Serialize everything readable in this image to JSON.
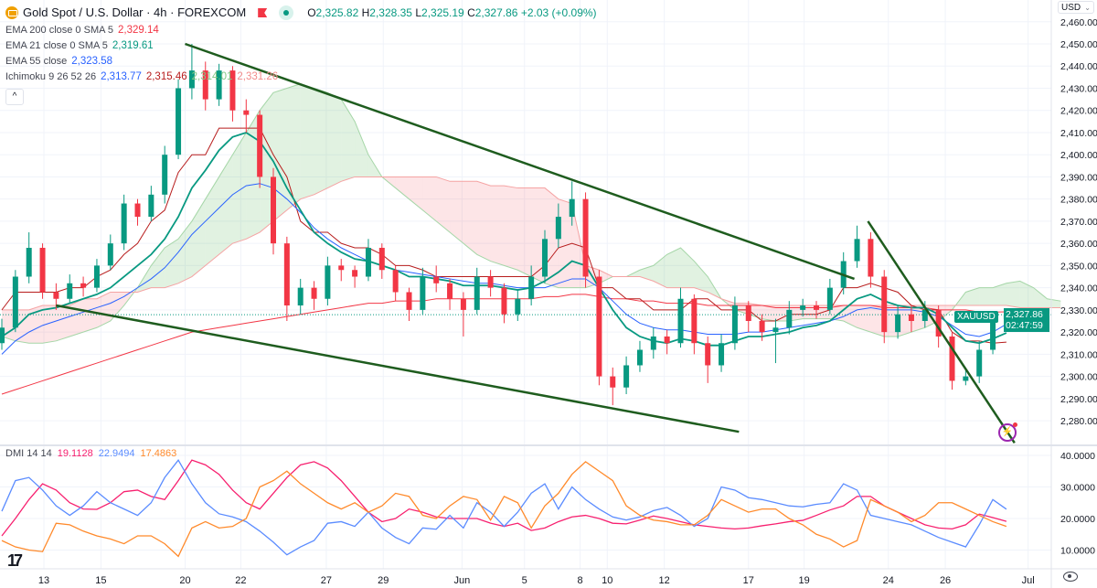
{
  "header": {
    "symbol_title": "Gold Spot / U.S. Dollar · 4h · FOREXCOM",
    "ohlc": {
      "o_label": "O",
      "o": "2,325.82",
      "h_label": "H",
      "h": "2,328.35",
      "l_label": "L",
      "l": "2,325.19",
      "c_label": "C",
      "c": "2,327.86",
      "change": "+2.03 (+0.09%)"
    },
    "icons": [
      "gold-logo-icon",
      "flag-icon",
      "market-open-dot-icon"
    ]
  },
  "indicators": [
    {
      "label": "EMA 200 close 0 SMA 5",
      "values": [
        "2,329.14"
      ],
      "colors": [
        "#f23645"
      ]
    },
    {
      "label": "EMA 21 close 0 SMA 5",
      "values": [
        "2,319.61"
      ],
      "colors": [
        "#089981"
      ]
    },
    {
      "label": "EMA 55 close",
      "values": [
        "2,323.58"
      ],
      "colors": [
        "#2962ff"
      ]
    },
    {
      "label": "Ichimoku 9 26 52 26",
      "values": [
        "2,313.77",
        "2,315.46",
        "2,314.01",
        "2,331.26"
      ],
      "colors": [
        "#2962ff",
        "#b71c1c",
        "#81c784",
        "#f28b8b"
      ]
    }
  ],
  "dmi": {
    "label": "DMI 14 14",
    "values": [
      "19.1128",
      "22.9494",
      "17.4863"
    ],
    "colors": [
      "#f7206f",
      "#5b8cff",
      "#ff8a2b"
    ]
  },
  "currency_button": "USD",
  "collapse_icon": "^",
  "price_badge": {
    "symbol": "XAUUSD",
    "price": "2,327.86",
    "countdown": "02:47:59"
  },
  "colors": {
    "up": "#089981",
    "down": "#f23645",
    "trendline": "#1e5c1e",
    "grid": "#f0f3fa"
  },
  "chart_data": {
    "type": "candlestick",
    "price_axis": {
      "ticks": [
        "2,460.00",
        "2,450.00",
        "2,440.00",
        "2,430.00",
        "2,420.00",
        "2,410.00",
        "2,400.00",
        "2,390.00",
        "2,380.00",
        "2,370.00",
        "2,360.00",
        "2,350.00",
        "2,340.00",
        "2,330.00",
        "2,320.00",
        "2,310.00",
        "2,300.00",
        "2,290.00",
        "2,280.00"
      ],
      "range": [
        2270,
        2461
      ]
    },
    "dmi_axis": {
      "ticks": [
        "40.0000",
        "30.0000",
        "20.0000",
        "10.0000"
      ],
      "range": [
        4,
        42
      ]
    },
    "time_axis": [
      {
        "label": "13",
        "bar": 3.1
      },
      {
        "label": "15",
        "bar": 7.3
      },
      {
        "label": "20",
        "bar": 13.5
      },
      {
        "label": "22",
        "bar": 17.6
      },
      {
        "label": "27",
        "bar": 23.9
      },
      {
        "label": "29",
        "bar": 28.1
      },
      {
        "label": "Jun",
        "bar": 33.9
      },
      {
        "label": "5",
        "bar": 38.5
      },
      {
        "label": "8",
        "bar": 42.6
      },
      {
        "label": "10",
        "bar": 44.6
      },
      {
        "label": "12",
        "bar": 48.8
      },
      {
        "label": "17",
        "bar": 55
      },
      {
        "label": "19",
        "bar": 59.1
      },
      {
        "label": "24",
        "bar": 65.3
      },
      {
        "label": "26",
        "bar": 69.5
      },
      {
        "label": "Jul",
        "bar": 75.6
      }
    ],
    "candles": [
      [
        2315,
        2326,
        2312,
        2322
      ],
      [
        2322,
        2348,
        2320,
        2345
      ],
      [
        2345,
        2365,
        2342,
        2358
      ],
      [
        2358,
        2360,
        2335,
        2338
      ],
      [
        2338,
        2342,
        2330,
        2335
      ],
      [
        2335,
        2346,
        2333,
        2342
      ],
      [
        2342,
        2345,
        2336,
        2340
      ],
      [
        2340,
        2353,
        2338,
        2350
      ],
      [
        2350,
        2364,
        2348,
        2360
      ],
      [
        2360,
        2382,
        2357,
        2378
      ],
      [
        2378,
        2380,
        2368,
        2372
      ],
      [
        2372,
        2386,
        2370,
        2382
      ],
      [
        2382,
        2404,
        2378,
        2400
      ],
      [
        2400,
        2434,
        2398,
        2430
      ],
      [
        2430,
        2450,
        2425,
        2438
      ],
      [
        2438,
        2442,
        2420,
        2425
      ],
      [
        2425,
        2441,
        2422,
        2438
      ],
      [
        2438,
        2440,
        2415,
        2420
      ],
      [
        2420,
        2425,
        2410,
        2418
      ],
      [
        2418,
        2420,
        2385,
        2390
      ],
      [
        2390,
        2394,
        2355,
        2360
      ],
      [
        2360,
        2363,
        2325,
        2332
      ],
      [
        2332,
        2344,
        2328,
        2340
      ],
      [
        2340,
        2343,
        2330,
        2335
      ],
      [
        2335,
        2354,
        2332,
        2350
      ],
      [
        2350,
        2353,
        2343,
        2348
      ],
      [
        2348,
        2350,
        2340,
        2345
      ],
      [
        2345,
        2362,
        2343,
        2358
      ],
      [
        2358,
        2360,
        2344,
        2348
      ],
      [
        2348,
        2350,
        2334,
        2338
      ],
      [
        2338,
        2340,
        2325,
        2330
      ],
      [
        2330,
        2349,
        2328,
        2345
      ],
      [
        2345,
        2350,
        2338,
        2342
      ],
      [
        2342,
        2344,
        2330,
        2335
      ],
      [
        2335,
        2338,
        2318,
        2330
      ],
      [
        2330,
        2349,
        2328,
        2345
      ],
      [
        2345,
        2348,
        2336,
        2340
      ],
      [
        2340,
        2342,
        2324,
        2328
      ],
      [
        2328,
        2339,
        2325,
        2335
      ],
      [
        2335,
        2350,
        2332,
        2345
      ],
      [
        2345,
        2366,
        2342,
        2362
      ],
      [
        2362,
        2378,
        2358,
        2372
      ],
      [
        2372,
        2388,
        2368,
        2380
      ],
      [
        2380,
        2383,
        2340,
        2345
      ],
      [
        2345,
        2348,
        2296,
        2300
      ],
      [
        2300,
        2304,
        2287,
        2295
      ],
      [
        2295,
        2309,
        2292,
        2305
      ],
      [
        2305,
        2316,
        2302,
        2312
      ],
      [
        2312,
        2322,
        2308,
        2318
      ],
      [
        2318,
        2321,
        2310,
        2315
      ],
      [
        2315,
        2340,
        2313,
        2335
      ],
      [
        2335,
        2337,
        2310,
        2315
      ],
      [
        2315,
        2318,
        2297,
        2305
      ],
      [
        2305,
        2319,
        2302,
        2315
      ],
      [
        2315,
        2336,
        2312,
        2332
      ],
      [
        2332,
        2334,
        2320,
        2325
      ],
      [
        2325,
        2328,
        2316,
        2320
      ],
      [
        2320,
        2326,
        2306,
        2322
      ],
      [
        2322,
        2334,
        2319,
        2330
      ],
      [
        2330,
        2335,
        2327,
        2332
      ],
      [
        2332,
        2334,
        2326,
        2330
      ],
      [
        2330,
        2344,
        2328,
        2340
      ],
      [
        2340,
        2356,
        2337,
        2352
      ],
      [
        2352,
        2368,
        2349,
        2362
      ],
      [
        2362,
        2365,
        2340,
        2345
      ],
      [
        2345,
        2348,
        2315,
        2320
      ],
      [
        2320,
        2332,
        2317,
        2328
      ],
      [
        2328,
        2332,
        2320,
        2325
      ],
      [
        2325,
        2334,
        2322,
        2330
      ],
      [
        2330,
        2332,
        2313,
        2318
      ],
      [
        2318,
        2320,
        2294,
        2298
      ],
      [
        2298,
        2304,
        2296,
        2300
      ],
      [
        2300,
        2316,
        2297,
        2312
      ],
      [
        2312,
        2329,
        2310,
        2325
      ],
      [
        2325.82,
        2328.35,
        2325.19,
        2327.86
      ]
    ],
    "ema200": [
      2292,
      2294,
      2296,
      2298,
      2300,
      2302,
      2304,
      2306,
      2308,
      2310,
      2312,
      2314,
      2316,
      2318,
      2320,
      2321,
      2322,
      2323,
      2324,
      2325,
      2326,
      2327,
      2328,
      2329,
      2330,
      2331,
      2332,
      2333,
      2333,
      2334,
      2334,
      2334,
      2335,
      2335,
      2335,
      2335,
      2335,
      2335,
      2335,
      2335,
      2336,
      2336,
      2337,
      2337,
      2336,
      2335,
      2335,
      2334,
      2334,
      2333,
      2333,
      2333,
      2332,
      2332,
      2332,
      2332,
      2332,
      2331,
      2331,
      2331,
      2331,
      2331,
      2332,
      2332,
      2332,
      2331,
      2331,
      2331,
      2331,
      2330,
      2330,
      2330,
      2329,
      2329,
      2329.14
    ],
    "ema21": [
      2318,
      2322,
      2328,
      2330,
      2331,
      2333,
      2335,
      2337,
      2340,
      2345,
      2350,
      2355,
      2362,
      2372,
      2385,
      2393,
      2402,
      2408,
      2410,
      2406,
      2397,
      2385,
      2375,
      2365,
      2360,
      2356,
      2353,
      2352,
      2350,
      2348,
      2345,
      2345,
      2344,
      2343,
      2341,
      2341,
      2341,
      2340,
      2339,
      2340,
      2343,
      2347,
      2352,
      2350,
      2340,
      2330,
      2322,
      2318,
      2316,
      2315,
      2317,
      2316,
      2314,
      2314,
      2316,
      2318,
      2318,
      2319,
      2320,
      2322,
      2323,
      2325,
      2330,
      2335,
      2337,
      2334,
      2332,
      2331,
      2331,
      2328,
      2322,
      2316,
      2315,
      2317,
      2319.61
    ],
    "ema55": [
      2310,
      2316,
      2320,
      2323,
      2325,
      2327,
      2329,
      2331,
      2333,
      2336,
      2340,
      2344,
      2349,
      2356,
      2364,
      2370,
      2376,
      2382,
      2386,
      2387,
      2385,
      2380,
      2374,
      2367,
      2362,
      2358,
      2355,
      2352,
      2350,
      2348,
      2347,
      2346,
      2345,
      2344,
      2343,
      2342,
      2342,
      2341,
      2340,
      2340,
      2340,
      2342,
      2344,
      2344,
      2340,
      2334,
      2328,
      2324,
      2322,
      2321,
      2321,
      2320,
      2319,
      2319,
      2319,
      2320,
      2320,
      2321,
      2322,
      2323,
      2324,
      2325,
      2327,
      2330,
      2331,
      2330,
      2330,
      2330,
      2329,
      2327,
      2323,
      2319,
      2318,
      2320,
      2323.58
    ],
    "ichimoku_kijun": [
      2330,
      2338,
      2338,
      2338,
      2338,
      2340,
      2340,
      2345,
      2348,
      2355,
      2360,
      2370,
      2375,
      2392,
      2400,
      2400,
      2412,
      2412,
      2412,
      2412,
      2400,
      2390,
      2370,
      2365,
      2365,
      2360,
      2358,
      2358,
      2355,
      2350,
      2350,
      2348,
      2345,
      2345,
      2345,
      2345,
      2345,
      2345,
      2345,
      2345,
      2350,
      2358,
      2360,
      2358,
      2340,
      2340,
      2335,
      2335,
      2330,
      2330,
      2330,
      2335,
      2335,
      2330,
      2330,
      2330,
      2325,
      2325,
      2328,
      2328,
      2328,
      2330,
      2340,
      2340,
      2342,
      2340,
      2338,
      2332,
      2330,
      2330,
      2320,
      2316,
      2316,
      2315,
      2315.46
    ],
    "ichimoku_span_a": [
      2318,
      2316,
      2315,
      2315,
      2316,
      2318,
      2320,
      2322,
      2325,
      2332,
      2340,
      2350,
      2358,
      2362,
      2370,
      2380,
      2390,
      2400,
      2410,
      2420,
      2428,
      2430,
      2432,
      2430,
      2428,
      2425,
      2415,
      2400,
      2390,
      2385,
      2380,
      2375,
      2370,
      2365,
      2360,
      2355,
      2352,
      2350,
      2348,
      2345,
      2342,
      2340,
      2340,
      2340,
      2342,
      2345,
      2345,
      2348,
      2350,
      2355,
      2358,
      2352,
      2345,
      2335,
      2330,
      2328,
      2326,
      2325,
      2325,
      2326,
      2326,
      2326,
      2325,
      2322,
      2320,
      2318,
      2318,
      2320,
      2322,
      2325,
      2330,
      2338,
      2340,
      2340,
      2342,
      2343,
      2340,
      2335,
      2334
    ],
    "ichimoku_span_b": [
      2330,
      2330,
      2330,
      2332,
      2332,
      2332,
      2335,
      2335,
      2338,
      2338,
      2338,
      2340,
      2340,
      2342,
      2345,
      2350,
      2355,
      2360,
      2362,
      2365,
      2370,
      2375,
      2380,
      2382,
      2385,
      2388,
      2390,
      2390,
      2390,
      2390,
      2390,
      2390,
      2390,
      2388,
      2388,
      2388,
      2386,
      2386,
      2385,
      2385,
      2385,
      2380,
      2378,
      2350,
      2348,
      2345,
      2345,
      2345,
      2343,
      2340,
      2340,
      2340,
      2338,
      2335,
      2333,
      2333,
      2332,
      2332,
      2332,
      2332,
      2332,
      2332,
      2332,
      2332,
      2332,
      2332,
      2332,
      2332,
      2332,
      2332,
      2332,
      2332,
      2332,
      2332,
      2332,
      2331,
      2331,
      2331,
      2331
    ],
    "trendlines": [
      {
        "from": {
          "bar": 13.5,
          "price": 2450
        },
        "to": {
          "bar": 62.8,
          "price": 2344
        }
      },
      {
        "from": {
          "bar": 4.0,
          "price": 2332
        },
        "to": {
          "bar": 54.3,
          "price": 2275
        }
      },
      {
        "from": {
          "bar": 63.8,
          "price": 2370
        },
        "to": {
          "bar": 74.6,
          "price": 2270
        }
      }
    ],
    "current_price": 2327.86,
    "dmi_series": [
      {
        "color": "#f7206f",
        "values": [
          14.5,
          20,
          26,
          31,
          29,
          25,
          23,
          22.9,
          25,
          28.5,
          29,
          27,
          26,
          32,
          38.5,
          37,
          34,
          29,
          25,
          23,
          28,
          33,
          37,
          38,
          36,
          32,
          27,
          22,
          19,
          20,
          23,
          22,
          20.5,
          20,
          20,
          20,
          18.5,
          17.5,
          18.5,
          16.2,
          17,
          19,
          20.5,
          21,
          20,
          18.5,
          18.3,
          19.5,
          20.8,
          20,
          19,
          18,
          17.5,
          17,
          16.7,
          17,
          17.7,
          18.3,
          19,
          19.4,
          21,
          22.7,
          24,
          27,
          27,
          24,
          22,
          20,
          18,
          17,
          16.7,
          18,
          21.4,
          20.3,
          19.11
        ]
      },
      {
        "color": "#5b8cff",
        "values": [
          22.3,
          32,
          33,
          29,
          24,
          21,
          24,
          28.5,
          25,
          23,
          21,
          25,
          33,
          38.5,
          31,
          25,
          21.5,
          20.5,
          19,
          16,
          12.5,
          8.5,
          11,
          13,
          18.5,
          19,
          17.5,
          22,
          17,
          14,
          12,
          17,
          16.6,
          21,
          17,
          25,
          22,
          17.5,
          22,
          28,
          31,
          23,
          30,
          26,
          23,
          20.5,
          19.5,
          20.5,
          22.5,
          23.5,
          21,
          17.5,
          20,
          30,
          29,
          26.6,
          26,
          25,
          24,
          23.7,
          24.5,
          25,
          31,
          29,
          21,
          20,
          19,
          18,
          16,
          14,
          12.5,
          11,
          18,
          26,
          22.95
        ]
      },
      {
        "color": "#ff8a2b",
        "values": [
          13,
          11,
          10,
          9.5,
          18.5,
          18,
          16,
          14.5,
          13.5,
          12,
          14.5,
          14.5,
          12,
          8,
          17,
          19,
          17,
          17.5,
          20,
          30,
          32,
          35,
          31,
          28,
          25,
          23,
          25,
          22,
          24,
          28,
          27,
          21,
          20,
          24,
          27,
          26,
          19.5,
          27,
          25,
          17,
          24,
          28,
          34,
          38,
          35,
          32,
          24,
          21,
          19.5,
          19,
          18,
          18,
          21,
          26,
          24,
          22,
          23,
          23,
          20,
          18,
          15,
          13.5,
          11,
          13,
          26,
          24,
          22,
          19,
          21,
          25,
          25,
          23,
          21,
          19,
          17.49
        ]
      }
    ]
  }
}
